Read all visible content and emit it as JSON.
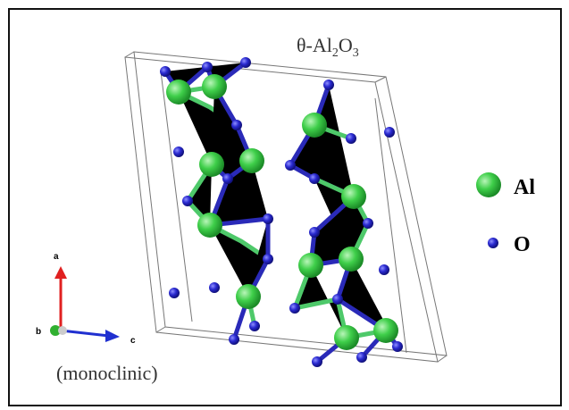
{
  "title": [
    "θ-Al",
    "2",
    "O",
    "3"
  ],
  "legend": [
    {
      "label": "Al"
    },
    {
      "label": "O"
    }
  ],
  "axes": {
    "a": "a",
    "b": "b",
    "c": "c"
  },
  "caption": "(monoclinic)"
}
